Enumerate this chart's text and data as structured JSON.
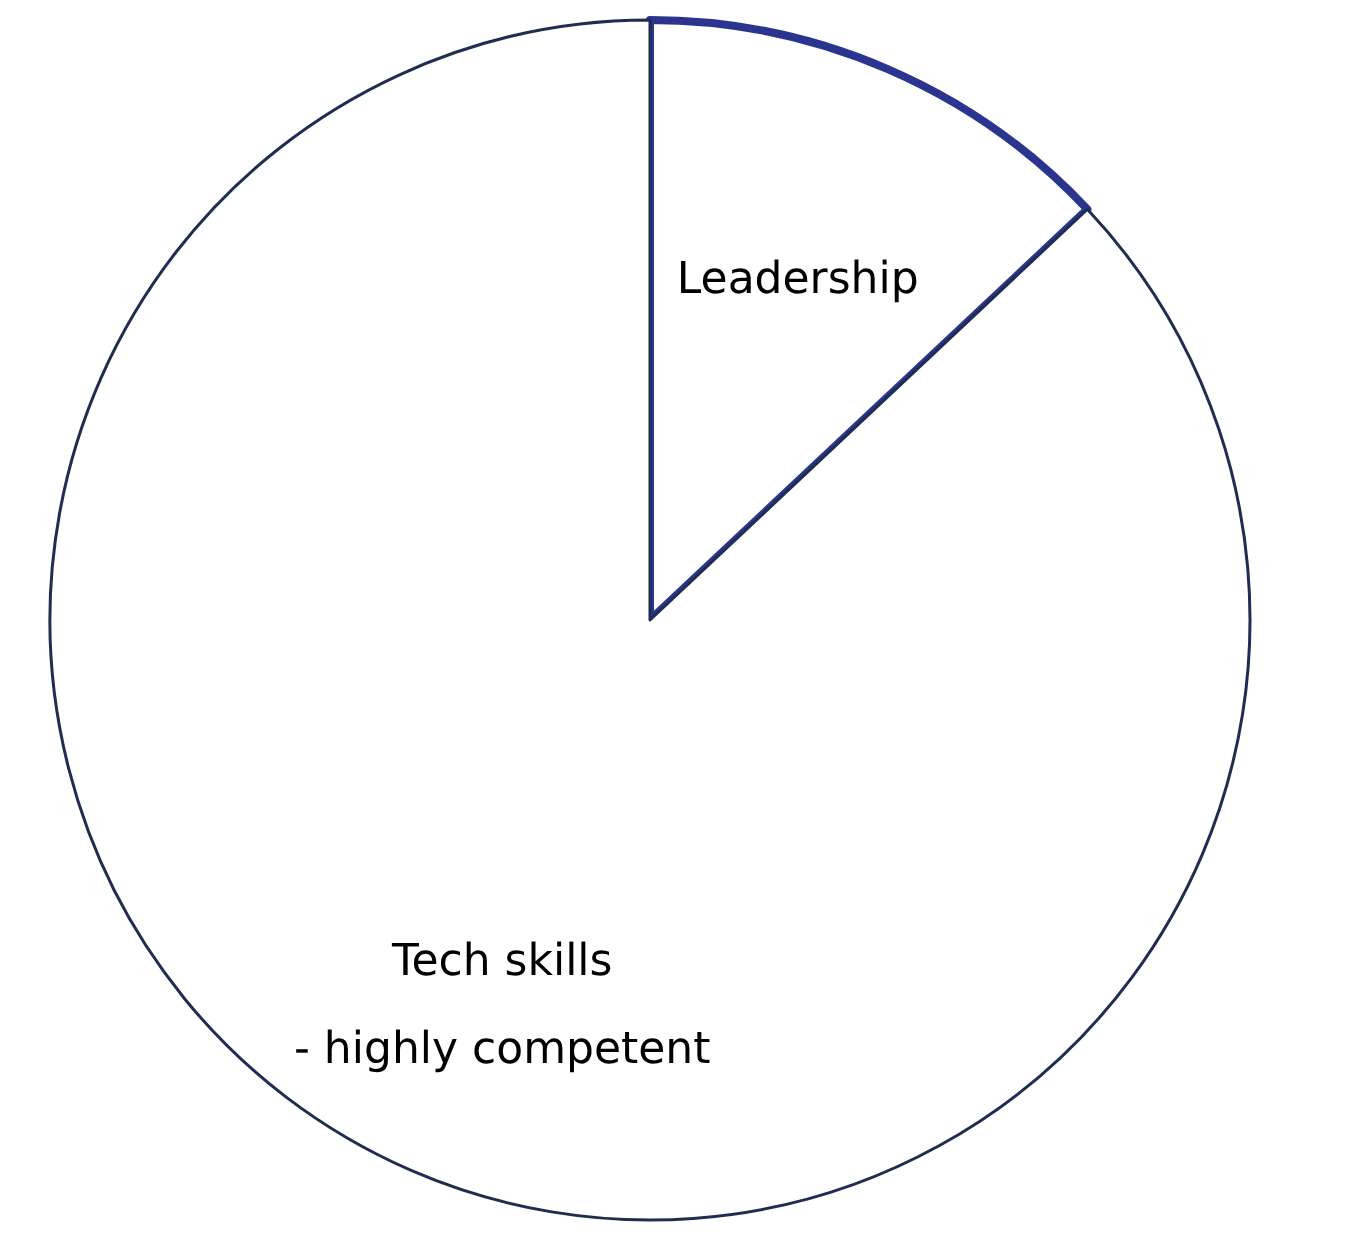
{
  "chart_data": {
    "type": "pie",
    "categories": [
      "Leadership",
      "Tech skills\n- highly competent"
    ],
    "values": [
      13,
      87
    ],
    "colors": [
      "#ffffff",
      "#ffffff"
    ]
  }
}
